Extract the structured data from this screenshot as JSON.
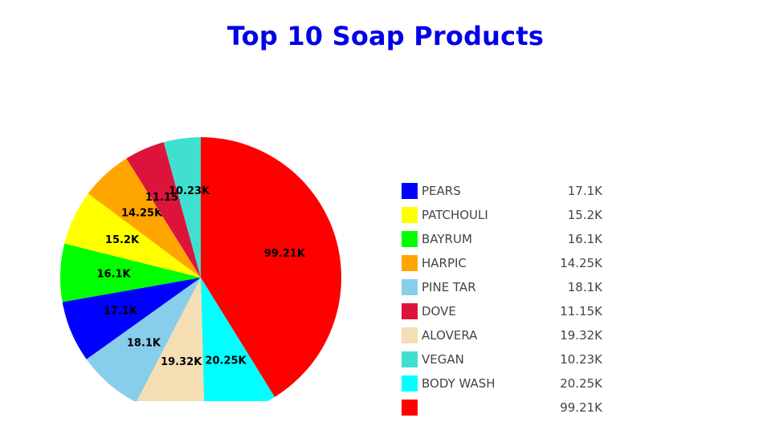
{
  "chart_data": {
    "type": "pie",
    "title": "Top 10 Soap Products",
    "legend_position": "right",
    "slices": [
      {
        "label": "",
        "value": 99.21,
        "text": "99.21K",
        "color": "#ff0000"
      },
      {
        "label": "BODY WASH",
        "value": 20.25,
        "text": "20.25K",
        "color": "#00ffff"
      },
      {
        "label": "ALOVERA",
        "value": 19.32,
        "text": "19.32K",
        "color": "#f5deb3"
      },
      {
        "label": "PINE TAR",
        "value": 18.1,
        "text": "18.1K",
        "color": "#87ceeb"
      },
      {
        "label": "PEARS",
        "value": 17.1,
        "text": "17.1K",
        "color": "#0000ff"
      },
      {
        "label": "BAYRUM",
        "value": 16.1,
        "text": "16.1K",
        "color": "#00ff00"
      },
      {
        "label": "PATCHOULI",
        "value": 15.2,
        "text": "15.2K",
        "color": "#ffff00"
      },
      {
        "label": "HARPIC",
        "value": 14.25,
        "text": "14.25K",
        "color": "#ffa500"
      },
      {
        "label": "DOVE",
        "value": 11.15,
        "text": "11.15K",
        "color": "#dc143c"
      },
      {
        "label": "VEGAN",
        "value": 10.23,
        "text": "10.23K",
        "color": "#40e0d0"
      }
    ],
    "legend_order": [
      "PEARS",
      "PATCHOULI",
      "BAYRUM",
      "HARPIC",
      "PINE TAR",
      "DOVE",
      "ALOVERA",
      "VEGAN",
      "BODY WASH",
      ""
    ]
  }
}
